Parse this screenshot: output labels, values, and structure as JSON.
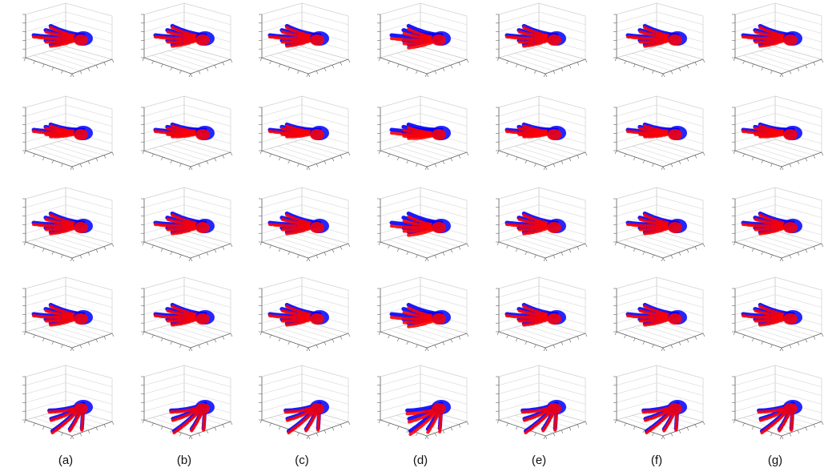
{
  "figure": {
    "columns": [
      "(a)",
      "(b)",
      "(c)",
      "(d)",
      "(e)",
      "(f)",
      "(g)"
    ],
    "rows": 5,
    "colors": {
      "series_a": "#ff0000",
      "series_b": "#0000ff",
      "axes": "#666666",
      "grid": "#cfcfcf"
    }
  }
}
